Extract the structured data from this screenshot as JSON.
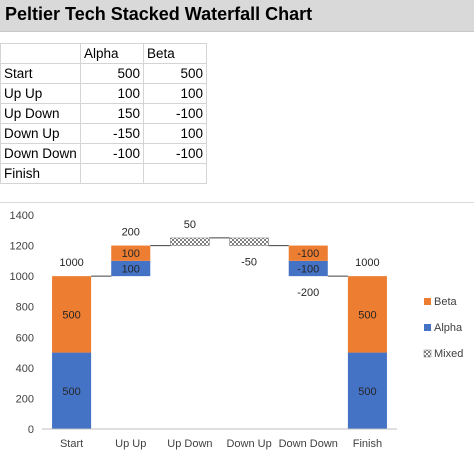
{
  "title": "Peltier Tech Stacked Waterfall Chart",
  "table": {
    "headers": [
      "",
      "Alpha",
      "Beta"
    ],
    "rows": [
      [
        "Start",
        "500",
        "500"
      ],
      [
        "Up Up",
        "100",
        "100"
      ],
      [
        "Up Down",
        "150",
        "-100"
      ],
      [
        "Down Up",
        "-150",
        "100"
      ],
      [
        "Down Down",
        "-100",
        "-100"
      ],
      [
        "Finish",
        "",
        ""
      ]
    ]
  },
  "colors": {
    "alpha": "#4472c4",
    "beta": "#ed7d31",
    "mixed": "#a5a5a5"
  },
  "chart_data": {
    "type": "bar",
    "title": "",
    "categories": [
      "Start",
      "Up Up",
      "Up Down",
      "Down Up",
      "Down Down",
      "Finish"
    ],
    "ylim": [
      0,
      1400
    ],
    "yticks": [
      "0",
      "200",
      "400",
      "600",
      "800",
      "1000",
      "1200",
      "1400"
    ],
    "grid": false,
    "legend_position": "right",
    "legend": [
      "Beta",
      "Alpha",
      "Mixed"
    ],
    "bars": [
      {
        "category": "Start",
        "segments": [
          {
            "series": "Alpha",
            "from": 0,
            "to": 500,
            "label": "500"
          },
          {
            "series": "Beta",
            "from": 500,
            "to": 1000,
            "label": "500"
          }
        ],
        "total_label": "1000",
        "total_label_value": 1000,
        "total_label_pos": "above"
      },
      {
        "category": "Up Up",
        "segments": [
          {
            "series": "Alpha",
            "from": 1000,
            "to": 1100,
            "label": "100"
          },
          {
            "series": "Beta",
            "from": 1100,
            "to": 1200,
            "label": "100"
          }
        ],
        "total_label": "200",
        "total_label_value": 1200,
        "total_label_pos": "above"
      },
      {
        "category": "Up Down",
        "segments": [
          {
            "series": "Mixed",
            "from": 1200,
            "to": 1250,
            "label": ""
          }
        ],
        "total_label": "50",
        "total_label_value": 1250,
        "total_label_pos": "above"
      },
      {
        "category": "Down Up",
        "segments": [
          {
            "series": "Mixed",
            "from": 1200,
            "to": 1250,
            "label": ""
          }
        ],
        "total_label": "-50",
        "total_label_value": 1200,
        "total_label_pos": "below"
      },
      {
        "category": "Down Down",
        "segments": [
          {
            "series": "Alpha",
            "from": 1000,
            "to": 1100,
            "label": "-100"
          },
          {
            "series": "Beta",
            "from": 1100,
            "to": 1200,
            "label": "-100"
          }
        ],
        "total_label": "-200",
        "total_label_value": 1000,
        "total_label_pos": "below"
      },
      {
        "category": "Finish",
        "segments": [
          {
            "series": "Alpha",
            "from": 0,
            "to": 500,
            "label": "500"
          },
          {
            "series": "Beta",
            "from": 500,
            "to": 1000,
            "label": "500"
          }
        ],
        "total_label": "1000",
        "total_label_value": 1000,
        "total_label_pos": "above"
      }
    ],
    "connectors": [
      1000,
      1200,
      1250,
      1200,
      1000
    ]
  }
}
